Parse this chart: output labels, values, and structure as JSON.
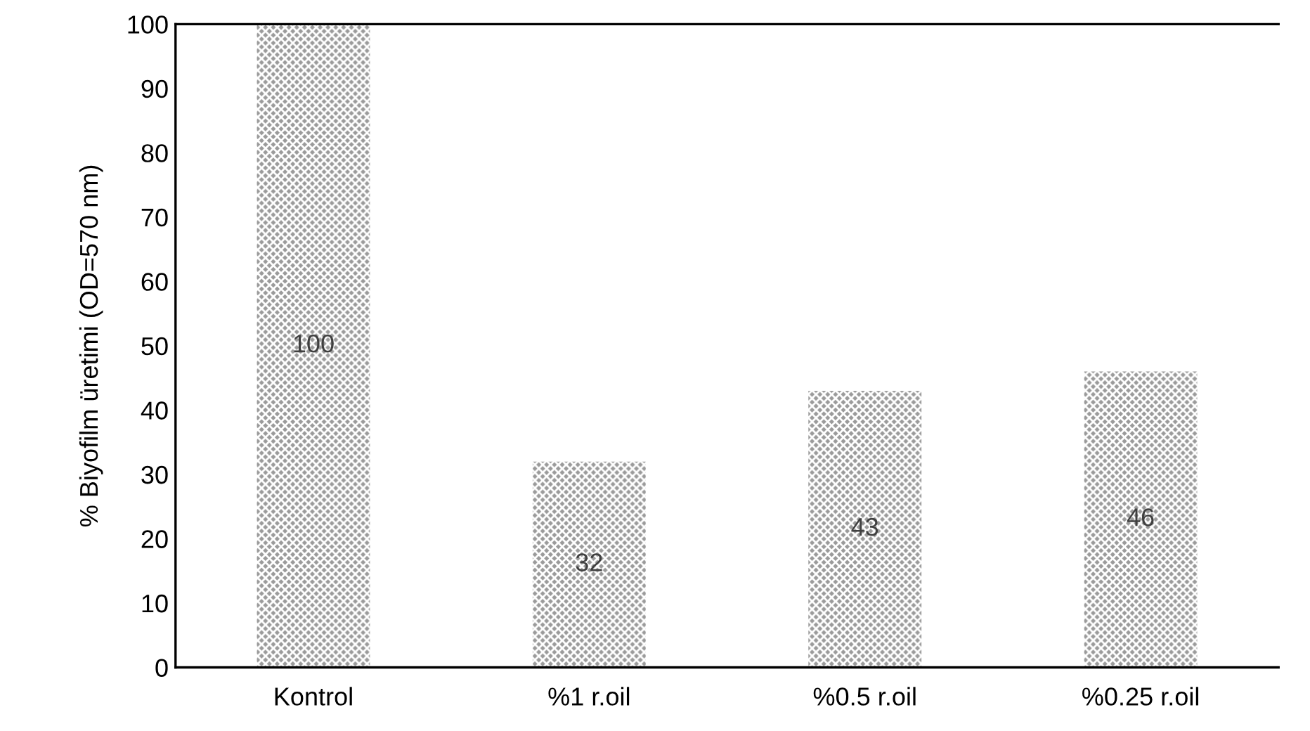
{
  "chart_data": {
    "type": "bar",
    "ylabel": "% Biyofilm üretimi (OD=570 nm)",
    "categories": [
      "Kontrol",
      "%1 r.oil",
      "%0.5 r.oil",
      "%0.25 r.oil"
    ],
    "values": [
      100,
      32,
      43,
      46
    ],
    "color": "#9a9a9a",
    "ylim": [
      0,
      100
    ],
    "yticks": [
      0,
      10,
      20,
      30,
      40,
      50,
      60,
      70,
      80,
      90,
      100
    ],
    "data_labels": true,
    "grid": false,
    "legend": false
  }
}
